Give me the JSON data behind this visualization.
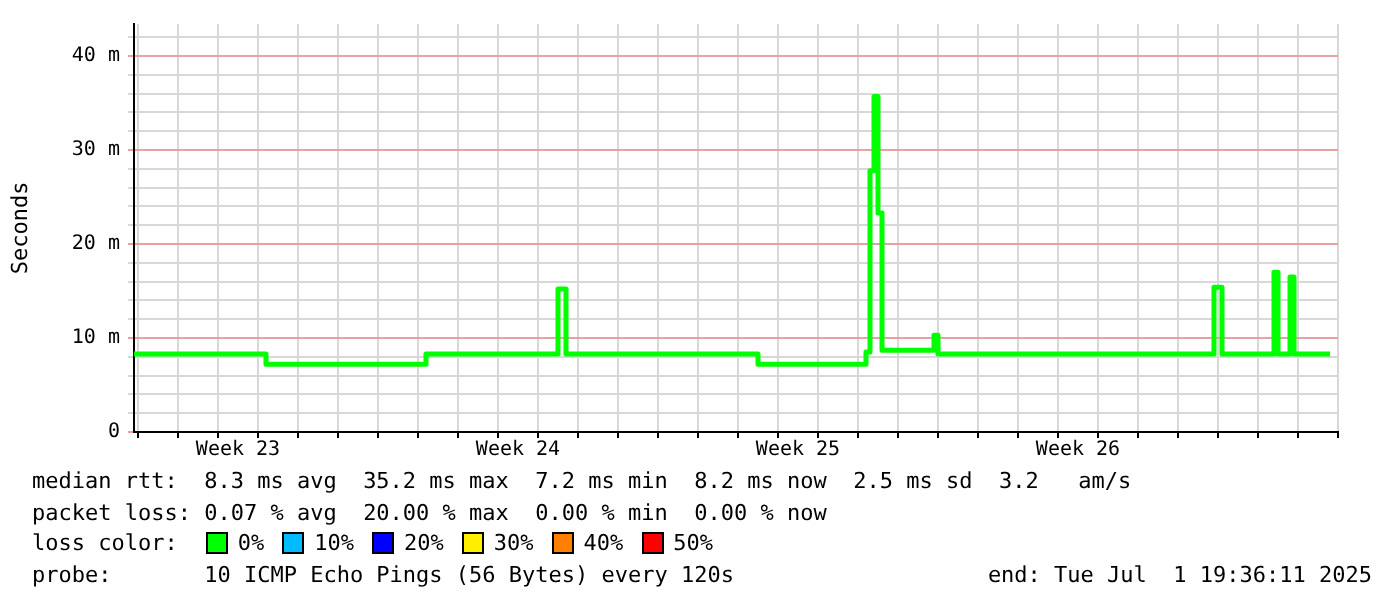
{
  "chart_data": {
    "type": "step",
    "ylabel": "Seconds",
    "grid": true,
    "marker": "none",
    "line_style": "solid",
    "ylim": [
      0,
      43.4
    ],
    "yticks": [
      {
        "value": 0,
        "label": "0"
      },
      {
        "value": 10,
        "label": "10 m"
      },
      {
        "value": 20,
        "label": "20 m"
      },
      {
        "value": 30,
        "label": "30 m"
      },
      {
        "value": 40,
        "label": "40 m"
      },
      {
        "value": 2,
        "label": null
      },
      {
        "value": 4,
        "label": null
      },
      {
        "value": 6,
        "label": null
      },
      {
        "value": 8,
        "label": null
      },
      {
        "value": 12,
        "label": null
      },
      {
        "value": 14,
        "label": null
      },
      {
        "value": 16,
        "label": null
      },
      {
        "value": 18,
        "label": null
      },
      {
        "value": 22,
        "label": null
      },
      {
        "value": 24,
        "label": null
      },
      {
        "value": 26,
        "label": null
      },
      {
        "value": 28,
        "label": null
      },
      {
        "value": 32,
        "label": null
      },
      {
        "value": 34,
        "label": null
      },
      {
        "value": 36,
        "label": null
      },
      {
        "value": 38,
        "label": null
      },
      {
        "value": 42,
        "label": null
      }
    ],
    "categories": [
      null,
      null,
      null,
      null,
      null,
      null,
      null,
      null,
      null,
      null,
      null,
      null,
      null,
      null,
      null,
      null,
      null,
      null,
      null,
      null,
      null,
      null,
      null,
      null,
      null,
      null,
      "Week 23",
      null,
      null,
      null,
      null,
      null,
      null,
      null,
      null,
      null,
      null,
      null,
      null,
      null,
      null,
      null,
      null,
      null,
      null,
      null,
      null,
      null,
      null,
      null,
      null,
      null,
      null,
      null,
      null,
      null,
      null,
      null,
      null,
      null,
      null,
      null,
      null,
      null,
      null,
      null,
      null,
      null,
      null,
      null,
      null,
      null,
      null,
      null,
      null,
      null,
      null,
      null,
      null,
      null,
      null,
      null,
      null,
      null,
      null,
      null,
      null,
      null,
      null,
      null,
      null,
      null,
      null,
      null,
      null,
      null,
      "Week 24",
      null,
      null,
      null,
      null,
      null,
      null,
      null,
      null,
      null,
      null,
      null,
      null,
      null,
      null,
      null,
      null,
      null,
      null,
      null,
      null,
      null,
      null,
      null,
      null,
      null,
      null,
      null,
      null,
      null,
      null,
      null,
      null,
      null,
      null,
      null,
      null,
      null,
      null,
      null,
      null,
      null,
      null,
      null,
      null,
      null,
      null,
      null,
      null,
      null,
      null,
      null,
      null,
      null,
      null,
      null,
      null,
      null,
      null,
      null,
      null,
      null,
      null,
      null,
      null,
      null,
      null,
      null,
      null,
      null,
      "Week 25",
      null,
      null,
      null,
      null,
      null,
      null,
      null,
      null,
      null,
      null,
      null,
      null,
      null,
      null,
      null,
      null,
      null,
      null,
      null,
      null,
      null,
      null,
      null,
      null,
      null,
      null,
      null,
      null,
      null,
      null,
      null,
      null,
      null,
      null,
      null,
      null,
      null,
      null,
      null,
      null,
      null,
      null,
      null,
      null,
      null,
      null,
      null,
      null,
      null,
      null,
      null,
      null,
      null,
      null,
      null,
      null,
      null,
      null,
      null,
      null,
      null,
      null,
      null,
      null,
      null,
      null,
      null,
      null,
      null,
      "Week 26",
      null,
      null,
      null,
      null,
      null,
      null,
      null,
      null,
      null,
      null,
      null,
      null,
      null,
      null,
      null,
      null,
      null,
      null,
      null,
      null,
      null,
      null,
      null,
      null,
      null,
      null,
      null,
      null,
      null,
      null,
      null,
      null,
      null,
      null,
      null,
      null,
      null,
      null,
      null,
      null,
      null,
      null,
      null,
      null,
      null,
      null,
      null,
      null,
      null,
      null,
      null,
      null,
      null,
      null,
      null,
      null,
      null,
      null,
      null,
      null,
      null,
      null,
      null,
      null,
      null
    ],
    "series": [
      {
        "color": "#00ff00",
        "values": [
          8.3,
          8.3,
          8.3,
          8.3,
          8.3,
          8.3,
          8.3,
          8.3,
          8.3,
          8.3,
          8.3,
          8.3,
          8.3,
          8.3,
          8.3,
          8.3,
          8.3,
          8.3,
          8.3,
          8.3,
          8.3,
          8.3,
          8.3,
          8.3,
          8.3,
          8.3,
          8.3,
          8.3,
          8.3,
          8.3,
          8.3,
          8.3,
          8.3,
          7.2,
          7.2,
          7.2,
          7.2,
          7.2,
          7.2,
          7.2,
          7.2,
          7.2,
          7.2,
          7.2,
          7.2,
          7.2,
          7.2,
          7.2,
          7.2,
          7.2,
          7.2,
          7.2,
          7.2,
          7.2,
          7.2,
          7.2,
          7.2,
          7.2,
          7.2,
          7.2,
          7.2,
          7.2,
          7.2,
          7.2,
          7.2,
          7.2,
          7.2,
          7.2,
          7.2,
          7.2,
          7.2,
          7.2,
          7.2,
          8.3,
          8.3,
          8.3,
          8.3,
          8.3,
          8.3,
          8.3,
          8.3,
          8.3,
          8.3,
          8.3,
          8.3,
          8.3,
          8.3,
          8.3,
          8.3,
          8.3,
          8.3,
          8.3,
          8.3,
          8.3,
          8.3,
          8.3,
          8.3,
          8.3,
          8.3,
          8.3,
          8.3,
          8.3,
          8.3,
          8.3,
          8.3,
          8.3,
          15.2,
          15.2,
          8.3,
          8.3,
          8.3,
          8.3,
          8.3,
          8.3,
          8.3,
          8.3,
          8.3,
          8.3,
          8.3,
          8.3,
          8.3,
          8.3,
          8.3,
          8.3,
          8.3,
          8.3,
          8.3,
          8.3,
          8.3,
          8.3,
          8.3,
          8.3,
          8.3,
          8.3,
          8.3,
          8.3,
          8.3,
          8.3,
          8.3,
          8.3,
          8.3,
          8.3,
          8.3,
          8.3,
          8.3,
          8.3,
          8.3,
          8.3,
          8.3,
          8.3,
          8.3,
          8.3,
          8.3,
          8.3,
          8.3,
          8.3,
          7.2,
          7.2,
          7.2,
          7.2,
          7.2,
          7.2,
          7.2,
          7.2,
          7.2,
          7.2,
          7.2,
          7.2,
          7.2,
          7.2,
          7.2,
          7.2,
          7.2,
          7.2,
          7.2,
          7.2,
          7.2,
          7.2,
          7.2,
          7.2,
          7.2,
          7.2,
          7.2,
          8.5,
          27.8,
          35.7,
          23.3,
          8.7,
          8.7,
          8.7,
          8.7,
          8.7,
          8.7,
          8.7,
          8.7,
          8.7,
          8.7,
          8.7,
          8.7,
          8.7,
          10.3,
          8.3,
          8.3,
          8.3,
          8.3,
          8.3,
          8.3,
          8.3,
          8.3,
          8.3,
          8.3,
          8.3,
          8.3,
          8.3,
          8.3,
          8.3,
          8.3,
          8.3,
          8.3,
          8.3,
          8.3,
          8.3,
          8.3,
          8.3,
          8.3,
          8.3,
          8.3,
          8.3,
          8.3,
          8.3,
          8.3,
          8.3,
          8.3,
          8.3,
          8.3,
          8.3,
          8.3,
          8.3,
          8.3,
          8.3,
          8.3,
          8.3,
          8.3,
          8.3,
          8.3,
          8.3,
          8.3,
          8.3,
          8.3,
          8.3,
          8.3,
          8.3,
          8.3,
          8.3,
          8.3,
          8.3,
          8.3,
          8.3,
          8.3,
          8.3,
          8.3,
          8.3,
          8.3,
          8.3,
          8.3,
          8.3,
          8.3,
          8.3,
          8.3,
          8.3,
          15.4,
          15.4,
          8.3,
          8.3,
          8.3,
          8.3,
          8.3,
          8.3,
          8.3,
          8.3,
          8.3,
          8.3,
          8.3,
          8.3,
          8.3,
          17,
          8.3,
          8.3,
          8.3,
          16.5,
          8.3,
          8.3,
          8.3,
          8.3,
          8.3,
          8.3,
          8.3,
          8.3,
          8.3,
          8.3,
          null,
          null
        ]
      }
    ],
    "annotations": [
      "median rtt:  8.3 ms avg  35.2 ms max  7.2 ms min  8.2 ms now  2.5 ms sd  3.2   am/s",
      "packet loss: 0.07 % avg  20.00 % max  0.00 % min  0.00 % now",
      "loss color:",
      "0%",
      "10%",
      "20%",
      "30%",
      "40%",
      "50%",
      "probe:       10 ICMP Echo Pings (56 Bytes) every 120s",
      "end: Tue Jul  1 19:36:11 2025"
    ]
  }
}
